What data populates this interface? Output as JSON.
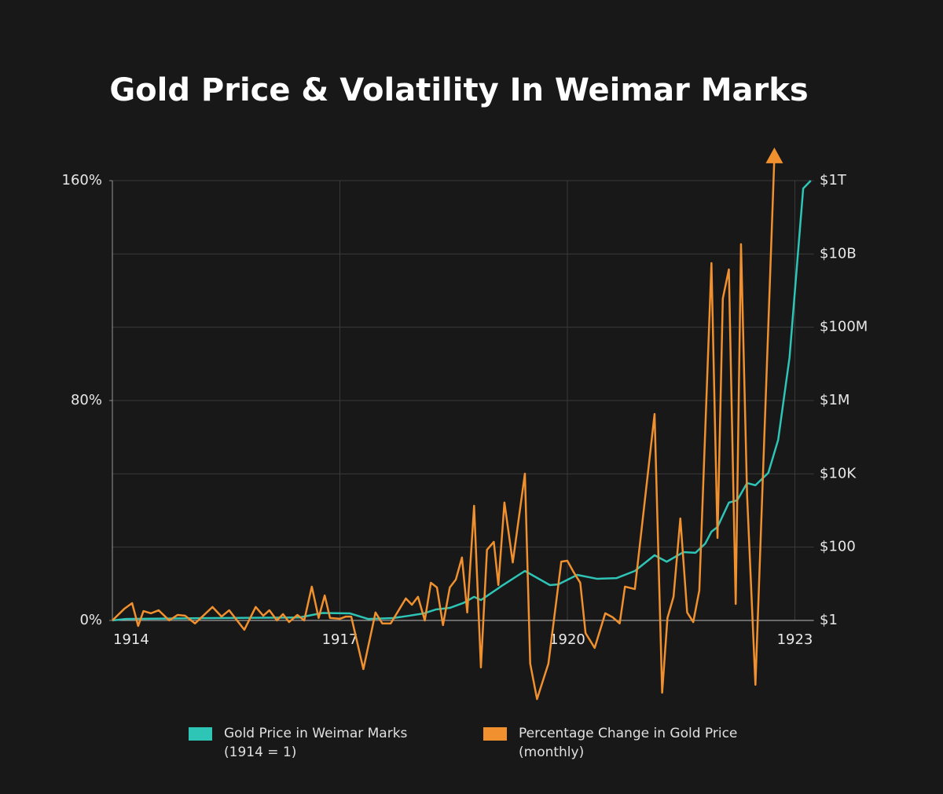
{
  "chart_data": {
    "type": "line",
    "title": "Gold Price & Volatility In Weimar Marks",
    "xlim": [
      1914,
      1923.25
    ],
    "xticks": [
      1914,
      1917,
      1920,
      1923
    ],
    "ylim": [
      0,
      160
    ],
    "yticks": [
      {
        "value": 0,
        "label": "0%"
      },
      {
        "value": 80,
        "label": "80%"
      },
      {
        "value": 160,
        "label": "160%"
      }
    ],
    "y2lim": [
      1,
      1000000000000
    ],
    "y2log": true,
    "y2ticks": [
      {
        "value": 1,
        "label": "$1"
      },
      {
        "value": 100,
        "label": "$100"
      },
      {
        "value": 10000,
        "label": "$10K"
      },
      {
        "value": 1000000,
        "label": "$1M"
      },
      {
        "value": 100000000,
        "label": "$100M"
      },
      {
        "value": 10000000000,
        "label": "$10B"
      },
      {
        "value": 1000000000000,
        "label": "$1T"
      }
    ],
    "grid": true,
    "legend": "bottom",
    "series": [
      {
        "name": "Gold Price in Weimar Marks (1914 = 1)",
        "color": "#2ec4b6",
        "axis": "y2",
        "x": [
          1914.0,
          1914.18,
          1915.32,
          1916.46,
          1916.77,
          1917.13,
          1917.37,
          1917.7,
          1917.91,
          1918.11,
          1918.27,
          1918.45,
          1918.63,
          1918.77,
          1918.86,
          1919.15,
          1919.44,
          1919.77,
          1919.88,
          1920.13,
          1920.39,
          1920.65,
          1920.89,
          1921.15,
          1921.31,
          1921.53,
          1921.69,
          1921.82,
          1921.9,
          1921.98,
          1922.13,
          1922.24,
          1922.37,
          1922.48,
          1922.65,
          1922.78,
          1922.93,
          1923.11,
          1923.21
        ],
        "values": [
          1,
          1.1,
          1.16,
          1.2,
          1.6,
          1.56,
          1.1,
          1.16,
          1.34,
          1.56,
          2,
          2.2,
          3,
          4.4,
          3.6,
          9.2,
          22.4,
          9.2,
          9.6,
          17.5,
          13.7,
          14.3,
          22.4,
          60,
          40,
          73,
          70,
          126,
          264,
          354,
          1640,
          1900,
          5600,
          4880,
          10600,
          85000,
          15000000,
          610000000000,
          1000000000000
        ]
      },
      {
        "name": "Percentage Change in Gold Price (monthly)",
        "color": "#f0902e",
        "x": [
          1914.0,
          1914.16,
          1914.26,
          1914.34,
          1914.41,
          1914.51,
          1914.61,
          1914.75,
          1914.86,
          1914.96,
          1915.09,
          1915.32,
          1915.44,
          1915.54,
          1915.74,
          1915.89,
          1915.99,
          1916.07,
          1916.17,
          1916.25,
          1916.33,
          1916.44,
          1916.53,
          1916.63,
          1916.72,
          1916.8,
          1916.87,
          1917.0,
          1917.08,
          1917.15,
          1917.31,
          1917.47,
          1917.56,
          1917.67,
          1917.87,
          1917.95,
          1918.03,
          1918.12,
          1918.2,
          1918.28,
          1918.36,
          1918.45,
          1918.53,
          1918.61,
          1918.68,
          1918.77,
          1918.86,
          1918.94,
          1919.03,
          1919.09,
          1919.17,
          1919.28,
          1919.44,
          1919.51,
          1919.6,
          1919.75,
          1919.92,
          1920.0,
          1920.08,
          1920.17,
          1920.24,
          1920.36,
          1920.5,
          1920.6,
          1920.69,
          1920.76,
          1920.89,
          1921.15,
          1921.25,
          1921.32,
          1921.4,
          1921.49,
          1921.58,
          1921.66,
          1921.74,
          1921.9,
          1921.98,
          1922.05,
          1922.13,
          1922.22,
          1922.29,
          1922.37,
          1922.48,
          1922.73
        ],
        "values": [
          0,
          4.3,
          6.3,
          -2,
          3.4,
          2.6,
          3.7,
          0,
          2,
          1.7,
          -1.1,
          4.9,
          1.4,
          3.7,
          -3.4,
          4.9,
          1.7,
          3.7,
          0,
          2.3,
          -0.6,
          2,
          0,
          12.3,
          0.9,
          9.1,
          0.9,
          0.6,
          1.4,
          1.4,
          -17.7,
          2.9,
          -1.1,
          -1.1,
          8,
          5.7,
          8.6,
          0,
          13.7,
          12,
          -1.7,
          12,
          14.9,
          22.9,
          2.9,
          41.7,
          -17.1,
          25.7,
          28.6,
          12.9,
          42.9,
          21.1,
          53.4,
          -15.7,
          -28.6,
          -15.7,
          21.4,
          21.7,
          17.7,
          13.7,
          -4.6,
          -10,
          2.6,
          1.1,
          -1.1,
          12.3,
          11.4,
          75.1,
          -26.3,
          0.9,
          8.6,
          37.1,
          2.9,
          -0.6,
          10.9,
          130,
          30,
          117.1,
          127.7,
          6,
          136.9,
          45.7,
          -23.4,
          168.6
        ]
      }
    ]
  }
}
